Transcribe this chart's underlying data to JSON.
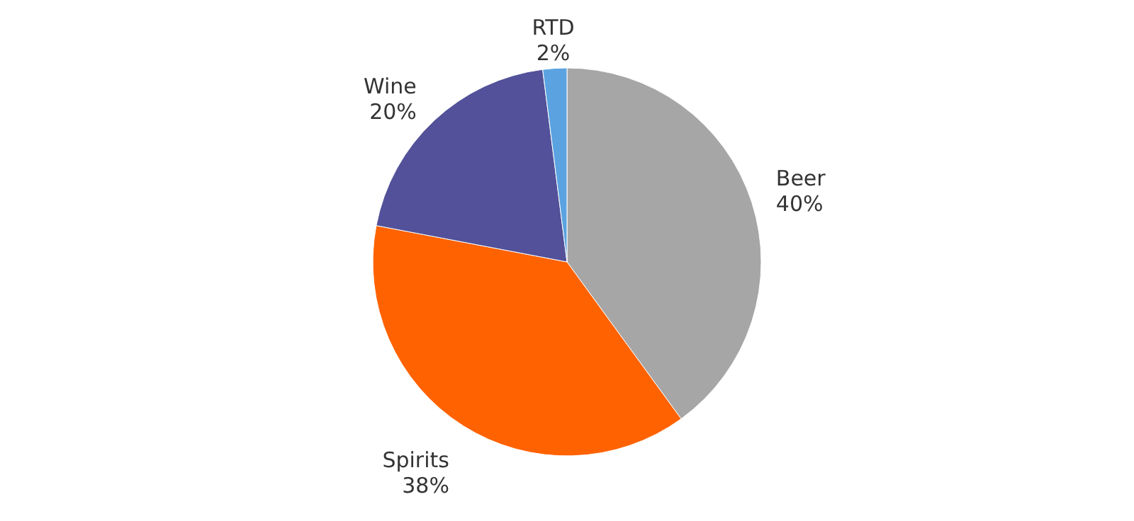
{
  "chart_data": {
    "type": "pie",
    "categories": [
      "Beer",
      "Spirits",
      "Wine",
      "RTD"
    ],
    "values": [
      40,
      38,
      20,
      2
    ],
    "colors": [
      "#a6a6a6",
      "#ff6200",
      "#525199",
      "#5ba3e0"
    ],
    "value_labels": [
      "40%",
      "38%",
      "20%",
      "2%"
    ]
  }
}
